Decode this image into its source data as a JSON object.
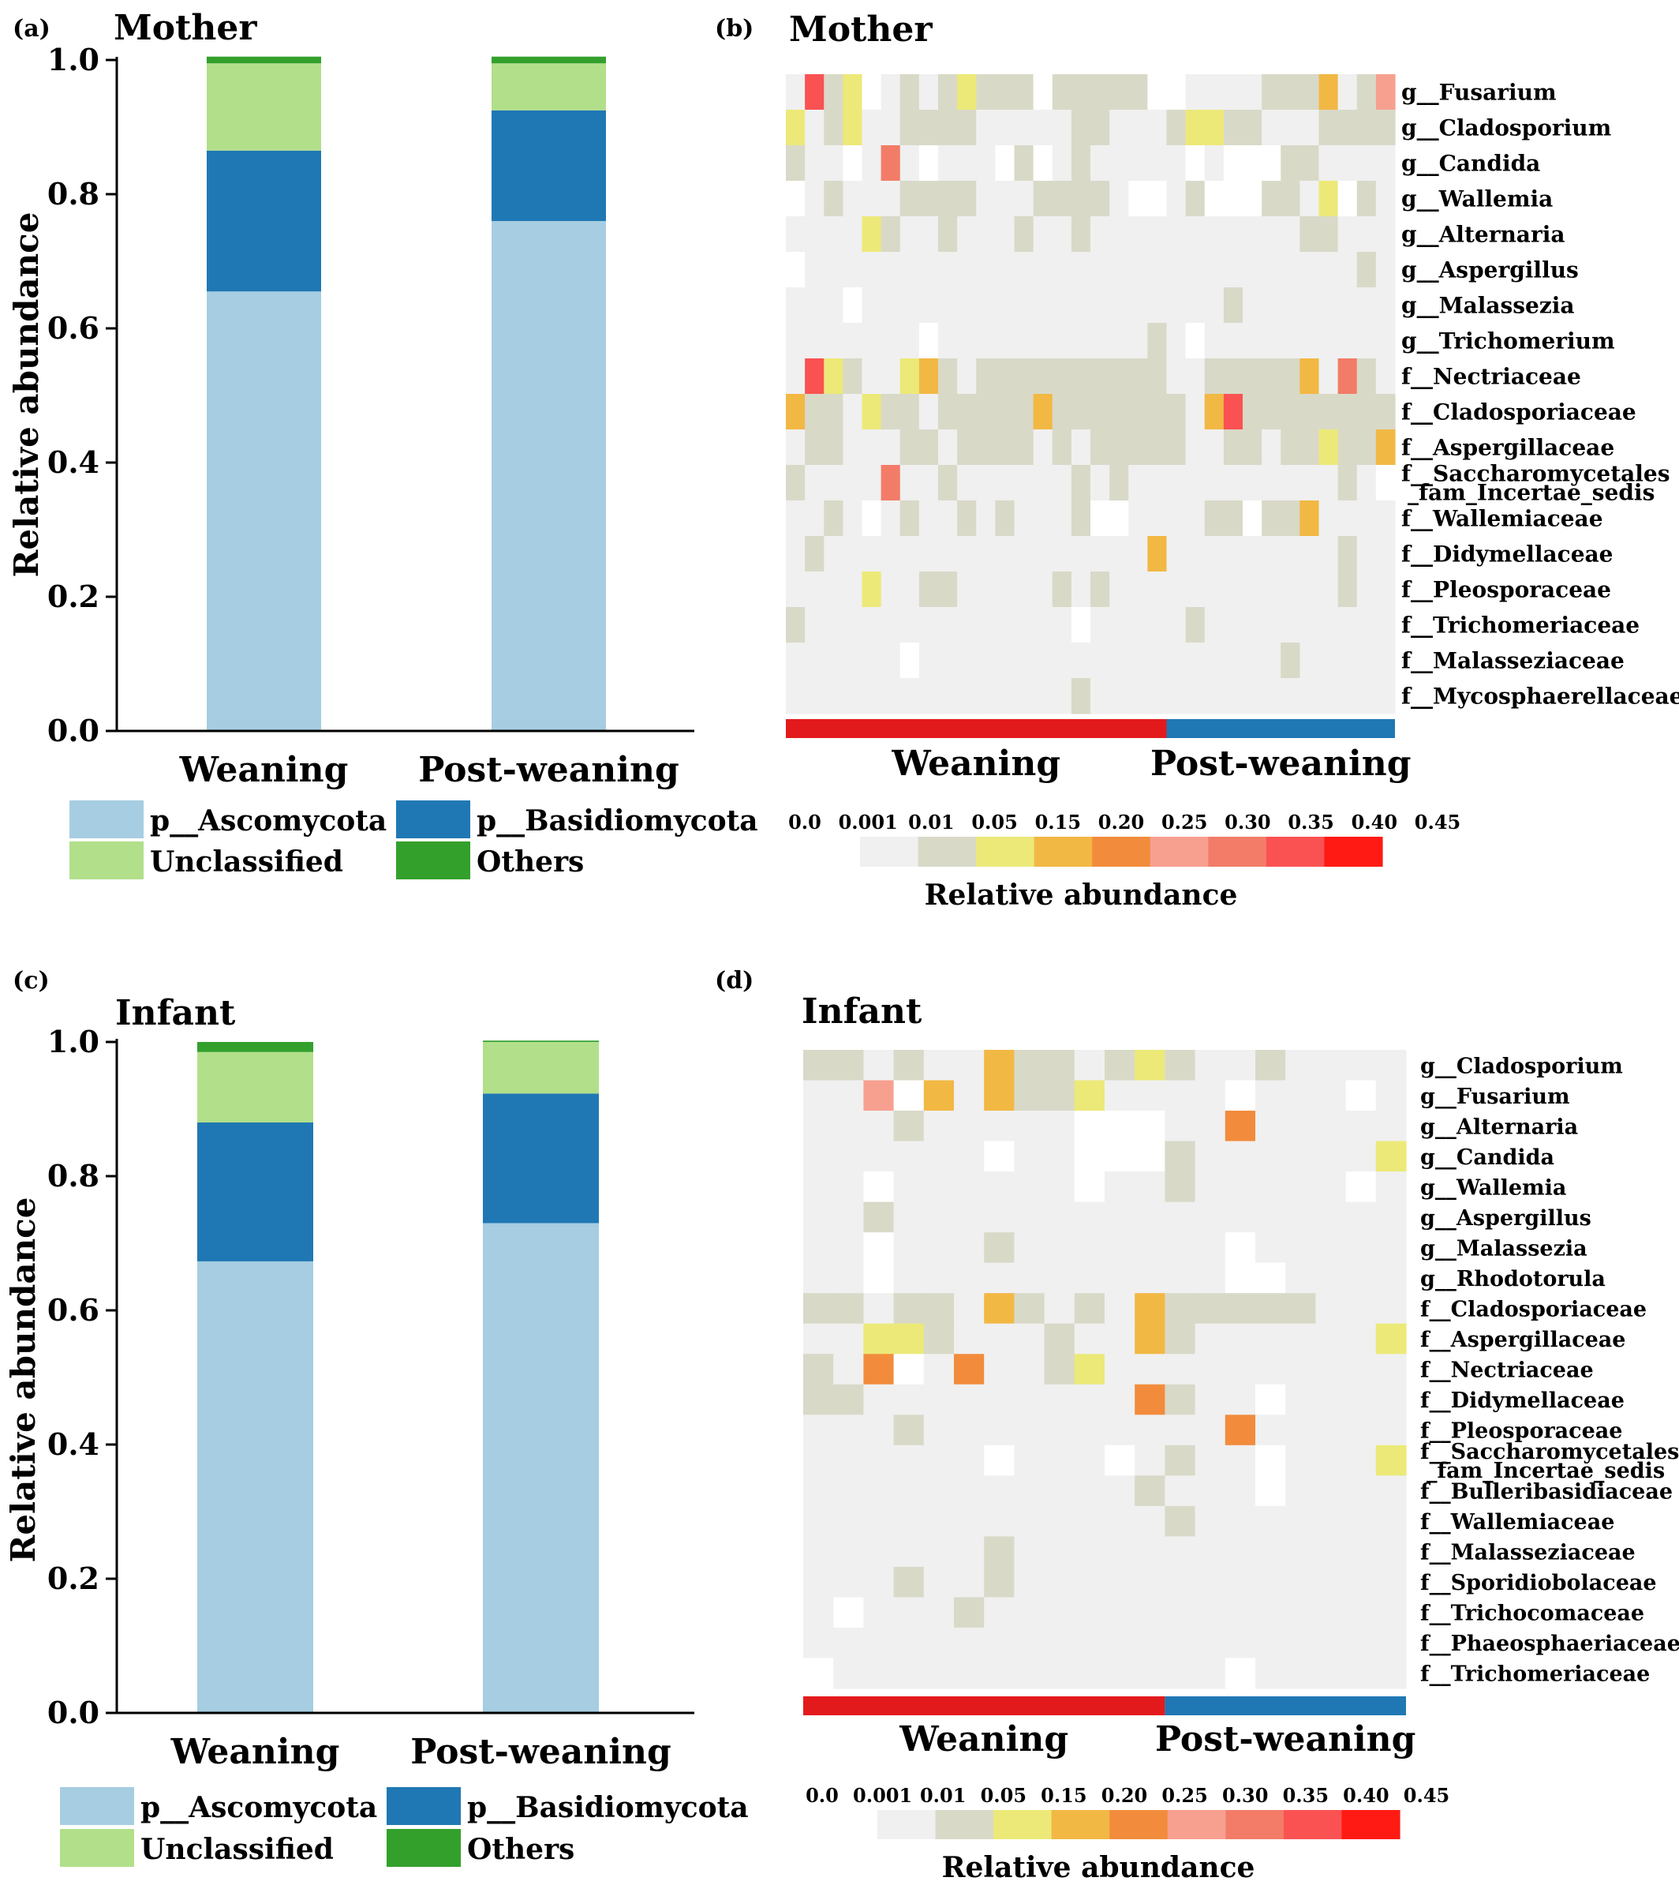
{
  "colors": {
    "ascomycota": "#a6cde1",
    "basidiomycota": "#1f78b4",
    "unclassified": "#b2df8a",
    "others": "#33a02c",
    "weaning_bar": "#e31a1c",
    "postweaning_bar": "#1f78b4",
    "scale": [
      "#f0f0f0",
      "#d9d9c8",
      "#ece979",
      "#f2b844",
      "#f28c3c",
      "#f7a090",
      "#f27c68",
      "#fa5252",
      "#ff1a14"
    ]
  },
  "legend": {
    "labels": [
      "p__Ascomycota",
      "p__Basidiomycota",
      "Unclassified",
      "Others"
    ],
    "keys": [
      "ascomycota",
      "basidiomycota",
      "unclassified",
      "others"
    ]
  },
  "colorbar": {
    "title": "Relative abundance",
    "ticks": [
      "0.0",
      "0.001",
      "0.01",
      "0.05",
      "0.15",
      "0.20",
      "0.25",
      "0.30",
      "0.35",
      "0.40",
      "0.45"
    ]
  },
  "chart_data": [
    {
      "panel_label": "(a)",
      "type": "bar",
      "stacked": true,
      "title": "Mother",
      "ylabel": "Relative abundance",
      "ylim": [
        0,
        1.0
      ],
      "yticks": [
        "0.0",
        "0.2",
        "0.4",
        "0.6",
        "0.8",
        "1.0"
      ],
      "categories": [
        "Weaning",
        "Post-weaning"
      ],
      "series": [
        {
          "name": "p__Ascomycota",
          "values": [
            0.655,
            0.76
          ]
        },
        {
          "name": "p__Basidiomycota",
          "values": [
            0.21,
            0.165
          ]
        },
        {
          "name": "Unclassified",
          "values": [
            0.13,
            0.07
          ]
        },
        {
          "name": "Others",
          "values": [
            0.01,
            0.01
          ]
        }
      ]
    },
    {
      "panel_label": "(b)",
      "type": "heatmap",
      "title": "Mother",
      "groups": [
        {
          "name": "Weaning",
          "columns": 20
        },
        {
          "name": "Post-weaning",
          "columns": 12
        }
      ],
      "rows": [
        "g__Fusarium",
        "g__Cladosporium",
        "g__Candida",
        "g__Wallemia",
        "g__Alternaria",
        "g__Aspergillus",
        "g__Malassezia",
        "g__Trichomerium",
        "f__Nectriaceae",
        "f__Cladosporiaceae",
        "f__Aspergillaceae",
        "f__Saccharomycetales\n_fam_Incertae_sedis",
        "f__Wallemiaceae",
        "f__Didymellaceae",
        "f__Pleosporaceae",
        "f__Trichomeriaceae",
        "f__Malasseziaceae",
        "f__Mycosphaerellaceae"
      ],
      "levels": [
        "18230121232220222220011112224126",
        "31231122221111122111233221112222",
        "21101710111020121111101000221111",
        "01211122221112222100120002213021",
        "11113211211121121111111111122111",
        "01111111111111111111111111111121",
        "11101111111111111111111211111111",
        "11111110111111111112101111111111",
        "18321134212222222222112222241721",
        "42213221222224222222214822222222",
        "12211122122221212222211221223224",
        "21111711211111121211111111111210",
        "11210121121211120011112202241111",
        "12111111111111111114111111111211",
        "11113112211111212111111111111211",
        "21111111111111101111121111111111",
        "11111101111111111111111111211111",
        "11111111111111121111111111111111"
      ]
    },
    {
      "panel_label": "(c)",
      "type": "bar",
      "stacked": true,
      "title": "Infant",
      "ylabel": "Relative abundance",
      "ylim": [
        0,
        1.0
      ],
      "yticks": [
        "0.0",
        "0.2",
        "0.4",
        "0.6",
        "0.8",
        "1.0"
      ],
      "categories": [
        "Weaning",
        "Post-weaning"
      ],
      "series": [
        {
          "name": "p__Ascomycota",
          "values": [
            0.673,
            0.73
          ]
        },
        {
          "name": "p__Basidiomycota",
          "values": [
            0.207,
            0.193
          ]
        },
        {
          "name": "Unclassified",
          "values": [
            0.105,
            0.077
          ]
        },
        {
          "name": "Others",
          "values": [
            0.015,
            0.002
          ]
        }
      ]
    },
    {
      "panel_label": "(d)",
      "type": "heatmap",
      "title": "Infant",
      "groups": [
        {
          "name": "Weaning",
          "columns": 12
        },
        {
          "name": "Post-weaning",
          "columns": 8
        }
      ],
      "rows": [
        "g__Cladosporium",
        "g__Fusarium",
        "g__Alternaria",
        "g__Candida",
        "g__Wallemia",
        "g__Aspergillus",
        "g__Malassezia",
        "g__Rhodotorula",
        "f__Cladosporiaceae",
        "f__Aspergillaceae",
        "f__Nectriaceae",
        "f__Didymellaceae",
        "f__Pleosporaceae",
        "f__Saccharomycetales\n_fam_Incertae_sedis",
        "f__Bulleribasidiaceae",
        "f__Wallemiaceae",
        "f__Malasseziaceae",
        "f__Sporidiobolaceae",
        "f__Trichocomaceae",
        "f__Phaeosphaeriaceae",
        "f__Trichomeriaceae"
      ],
      "levels": [
        "22121142212321121111",
        "11604142231111011101",
        "11121111100011511111",
        "11111101100021111113",
        "11011111101121111101",
        "11211111111111111111",
        "11011121111111011111",
        "11011111111111001111",
        "22122142121422222111",
        "11332111211421111113",
        "21501511231111111111",
        "22111111111521101111",
        "11121111111111511111",
        "11111101110121101113",
        "11111111111211101111",
        "11111111111121111111",
        "11111121111111111111",
        "11121121111111111111",
        "10111211111111111111",
        "11111111111111111111",
        "01111111111111011111"
      ]
    }
  ]
}
